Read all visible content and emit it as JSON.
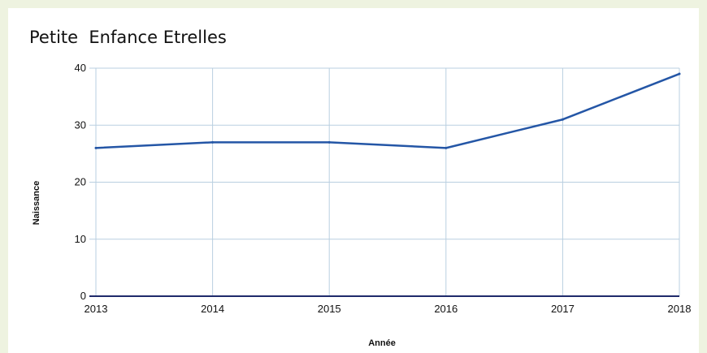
{
  "chart_data": {
    "type": "line",
    "title": "Petite  Enfance Etrelles",
    "xlabel": "Année",
    "ylabel": "Naissance",
    "x": [
      "2013",
      "2014",
      "2015",
      "2016",
      "2017",
      "2018"
    ],
    "series": [
      {
        "values": [
          26,
          27,
          27,
          26,
          31,
          39
        ]
      }
    ],
    "ylim": [
      0,
      40
    ],
    "yticks": [
      "0",
      "10",
      "20",
      "30",
      "40"
    ],
    "grid": true,
    "legend": "none",
    "colors": {
      "line": "#2456a6",
      "grid": "#b9cfe0",
      "axis": "#1f2a6b"
    }
  }
}
